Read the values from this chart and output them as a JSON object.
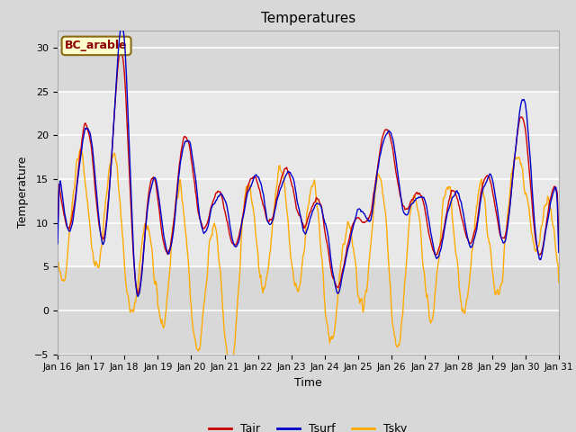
{
  "title": "Temperatures",
  "xlabel": "Time",
  "ylabel": "Temperature",
  "site_label": "BC_arable",
  "ylim": [
    -5,
    32
  ],
  "xlim": [
    0,
    360
  ],
  "yticks": [
    -5,
    0,
    5,
    10,
    15,
    20,
    25,
    30
  ],
  "xtick_labels": [
    "Jan 16",
    "Jan 17",
    "Jan 18",
    "Jan 19",
    "Jan 20",
    "Jan 21",
    "Jan 22",
    "Jan 23",
    "Jan 24",
    "Jan 25",
    "Jan 26",
    "Jan 27",
    "Jan 28",
    "Jan 29",
    "Jan 30",
    "Jan 31"
  ],
  "n_points": 721,
  "shade_y1": 5,
  "shade_y2": 25,
  "tair_color": "#cc0000",
  "tsurf_color": "#0000cc",
  "tsky_color": "#ffaa00",
  "legend_labels": [
    "Tair",
    "Tsurf",
    "Tsky"
  ],
  "fig_bg_color": "#d8d8d8",
  "axes_bg_color": "#d8d8d8",
  "grid_color": "#ffffff",
  "shade_color": "#e8e8e8"
}
